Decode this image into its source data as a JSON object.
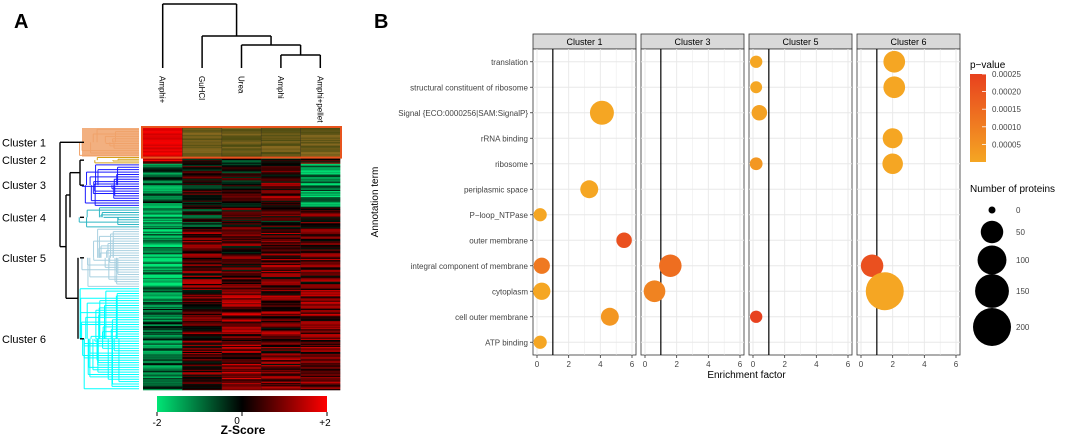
{
  "panels": {
    "a": "A",
    "b": "B"
  },
  "chart_data": [
    {
      "type": "heatmap",
      "panel": "A",
      "columns": [
        "Amphi+",
        "GuHCl",
        "Urea",
        "Amphi",
        "Amphi+pellet"
      ],
      "clusters": [
        {
          "label": "Cluster 1",
          "color": "#f0a26a",
          "rows": 24
        },
        {
          "label": "Cluster 2",
          "color": "#d4a017",
          "rows": 6
        },
        {
          "label": "Cluster 3",
          "color": "#1a1aff",
          "rows": 36
        },
        {
          "label": "Cluster 4",
          "color": "#2fb6c4",
          "rows": 18
        },
        {
          "label": "Cluster 5",
          "color": "#a9d0e0",
          "rows": 50
        },
        {
          "label": "Cluster 6",
          "color": "#00ffff",
          "rows": 86
        }
      ],
      "colorbar": {
        "title": "Z-Score",
        "min_label": "-2",
        "mid_label": "0",
        "max_label": "+2",
        "low": "#00e676",
        "mid": "#000000",
        "high": "#ff0000"
      }
    },
    {
      "type": "scatter",
      "panel": "B",
      "facets": [
        "Cluster 1",
        "Cluster 3",
        "Cluster 5",
        "Cluster 6"
      ],
      "terms": [
        "translation",
        "structural constituent of ribosome",
        "Signal {ECO:0000256|SAM:SignalP}",
        "rRNA binding",
        "ribosome",
        "periplasmic space",
        "P−loop_NTPase",
        "outer membrane",
        "integral component of membrane",
        "cytoplasm",
        "cell outer membrane",
        "ATP binding"
      ],
      "xlabel": "Enrichment factor",
      "ylabel": "Annotation term",
      "xlim": [
        0,
        6
      ],
      "xticks": [
        "0",
        "2",
        "4",
        "6"
      ],
      "vline": 1,
      "points": [
        {
          "facet": "Cluster 1",
          "term": "Signal {ECO:0000256|SAM:SignalP}",
          "x": 4.1,
          "n": 60,
          "p": 2e-05
        },
        {
          "facet": "Cluster 1",
          "term": "periplasmic space",
          "x": 3.3,
          "n": 25,
          "p": 4e-05
        },
        {
          "facet": "Cluster 1",
          "term": "P−loop_NTPase",
          "x": 0.2,
          "n": 8,
          "p": 2e-05
        },
        {
          "facet": "Cluster 1",
          "term": "outer membrane",
          "x": 5.5,
          "n": 15,
          "p": 0.00022
        },
        {
          "facet": "Cluster 1",
          "term": "integral component of membrane",
          "x": 0.3,
          "n": 18,
          "p": 0.00014
        },
        {
          "facet": "Cluster 1",
          "term": "cytoplasm",
          "x": 0.3,
          "n": 22,
          "p": 5e-05
        },
        {
          "facet": "Cluster 1",
          "term": "cell outer membrane",
          "x": 4.6,
          "n": 25,
          "p": 8e-05
        },
        {
          "facet": "Cluster 1",
          "term": "ATP binding",
          "x": 0.2,
          "n": 8,
          "p": 2e-05
        },
        {
          "facet": "Cluster 3",
          "term": "integral component of membrane",
          "x": 1.6,
          "n": 50,
          "p": 0.00016
        },
        {
          "facet": "Cluster 3",
          "term": "cytoplasm",
          "x": 0.6,
          "n": 45,
          "p": 0.00012
        },
        {
          "facet": "Cluster 5",
          "term": "translation",
          "x": 0.2,
          "n": 6,
          "p": 3e-05
        },
        {
          "facet": "Cluster 5",
          "term": "structural constituent of ribosome",
          "x": 0.2,
          "n": 5,
          "p": 2e-05
        },
        {
          "facet": "Cluster 5",
          "term": "Signal {ECO:0000256|SAM:SignalP}",
          "x": 0.4,
          "n": 15,
          "p": 6e-05
        },
        {
          "facet": "Cluster 5",
          "term": "ribosome",
          "x": 0.2,
          "n": 7,
          "p": 8e-05
        },
        {
          "facet": "Cluster 5",
          "term": "cell outer membrane",
          "x": 0.2,
          "n": 6,
          "p": 0.00025
        },
        {
          "facet": "Cluster 6",
          "term": "translation",
          "x": 2.1,
          "n": 45,
          "p": 2e-05
        },
        {
          "facet": "Cluster 6",
          "term": "structural constituent of ribosome",
          "x": 2.1,
          "n": 45,
          "p": 2e-05
        },
        {
          "facet": "Cluster 6",
          "term": "rRNA binding",
          "x": 2.0,
          "n": 35,
          "p": 2e-05
        },
        {
          "facet": "Cluster 6",
          "term": "ribosome",
          "x": 2.0,
          "n": 38,
          "p": 2e-05
        },
        {
          "facet": "Cluster 6",
          "term": "integral component of membrane",
          "x": 0.7,
          "n": 50,
          "p": 0.00022
        },
        {
          "facet": "Cluster 6",
          "term": "cytoplasm",
          "x": 1.5,
          "n": 200,
          "p": 5e-05
        }
      ],
      "legend_color": {
        "title": "p−value",
        "labels": [
          "0.00025",
          "0.00020",
          "0.00015",
          "0.00010",
          "0.00005"
        ],
        "values": [
          0.00025,
          0.0002,
          0.00015,
          0.0001,
          5e-05
        ],
        "low_color": "#f5a623",
        "high_color": "#e8411e"
      },
      "legend_size": {
        "title": "Number of proteins",
        "values": [
          0,
          50,
          100,
          150,
          200
        ],
        "labels": [
          "0",
          "50",
          "100",
          "150",
          "200"
        ]
      }
    }
  ]
}
